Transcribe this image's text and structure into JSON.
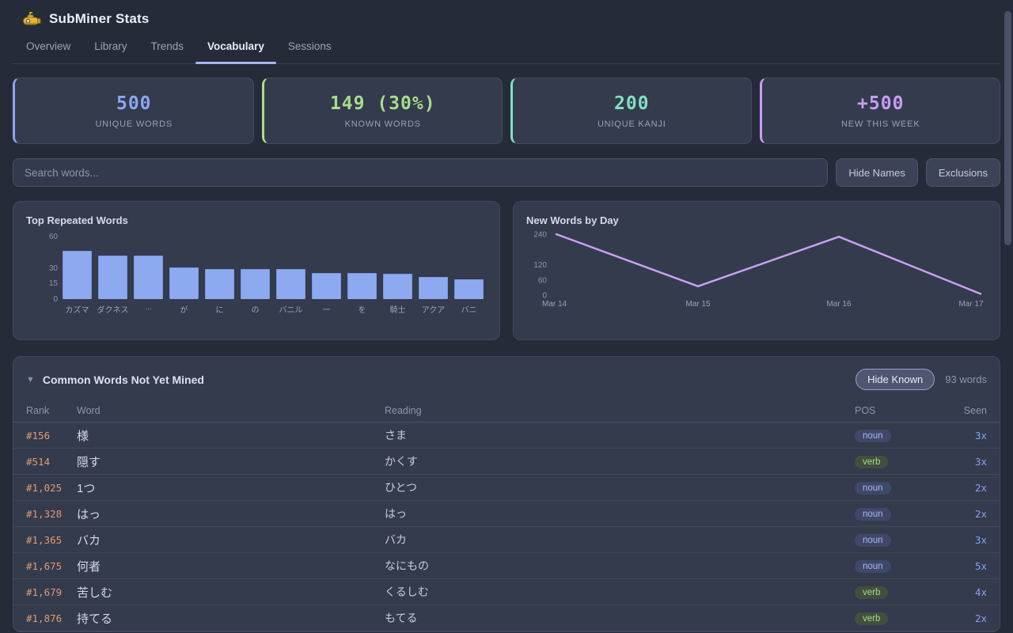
{
  "app": {
    "title": "SubMiner Stats",
    "logo": "yellow-submarine"
  },
  "tabs": [
    {
      "label": "Overview",
      "active": false
    },
    {
      "label": "Library",
      "active": false
    },
    {
      "label": "Trends",
      "active": false
    },
    {
      "label": "Vocabulary",
      "active": true
    },
    {
      "label": "Sessions",
      "active": false
    }
  ],
  "stats": [
    {
      "value": "500",
      "label": "UNIQUE WORDS",
      "color": "#8ca6f2"
    },
    {
      "value": "149 (30%)",
      "label": "KNOWN WORDS",
      "color": "#a9dd8b"
    },
    {
      "value": "200",
      "label": "UNIQUE KANJI",
      "color": "#7fe0c4"
    },
    {
      "value": "+500",
      "label": "NEW THIS WEEK",
      "color": "#c89cf4"
    }
  ],
  "search": {
    "placeholder": "Search words...",
    "hide_names_label": "Hide Names",
    "exclusions_label": "Exclusions"
  },
  "chart_data": [
    {
      "type": "bar",
      "title": "Top Repeated Words",
      "categories": [
        "カズマ",
        "ダクネス",
        "...",
        "が",
        "に",
        "の",
        "バニル",
        "一",
        "を",
        "騎士",
        "アクア",
        "バニ"
      ],
      "values": [
        46,
        42,
        42,
        30,
        29,
        29,
        29,
        25,
        25,
        24,
        21,
        19
      ],
      "yticks": [
        0,
        15,
        30,
        60
      ],
      "ylim": [
        0,
        60
      ],
      "bar_color": "#8da9f0",
      "grid": false,
      "legend": "none"
    },
    {
      "type": "line",
      "title": "New Words by Day",
      "x": [
        "Mar 14",
        "Mar 15",
        "Mar 16",
        "Mar 17"
      ],
      "values": [
        240,
        35,
        230,
        5
      ],
      "yticks": [
        0,
        60,
        120,
        240
      ],
      "ylim": [
        0,
        240
      ],
      "line_color": "#c9a0f2",
      "grid": false,
      "legend": "none"
    }
  ],
  "table": {
    "collapse_icon": "▼",
    "title": "Common Words Not Yet Mined",
    "hide_known_label": "Hide Known",
    "count_label": "93 words",
    "columns": [
      "Rank",
      "Word",
      "Reading",
      "POS",
      "Seen"
    ],
    "rows": [
      {
        "rank": "#156",
        "word": "様",
        "reading": "さま",
        "pos": "noun",
        "seen": "3x"
      },
      {
        "rank": "#514",
        "word": "隠す",
        "reading": "かくす",
        "pos": "verb",
        "seen": "3x"
      },
      {
        "rank": "#1,025",
        "word": "1つ",
        "reading": "ひとつ",
        "pos": "noun",
        "seen": "2x"
      },
      {
        "rank": "#1,328",
        "word": "はっ",
        "reading": "はっ",
        "pos": "noun",
        "seen": "2x"
      },
      {
        "rank": "#1,365",
        "word": "バカ",
        "reading": "バカ",
        "pos": "noun",
        "seen": "3x"
      },
      {
        "rank": "#1,675",
        "word": "何者",
        "reading": "なにもの",
        "pos": "noun",
        "seen": "5x"
      },
      {
        "rank": "#1,679",
        "word": "苦しむ",
        "reading": "くるしむ",
        "pos": "verb",
        "seen": "4x"
      },
      {
        "rank": "#1,876",
        "word": "持てる",
        "reading": "もてる",
        "pos": "verb",
        "seen": "2x"
      }
    ],
    "pos_colors": {
      "noun": {
        "bg": "#3f4869",
        "text": "#aab8f4"
      },
      "verb": {
        "bg": "#41503e",
        "text": "#a9da8c"
      }
    }
  }
}
